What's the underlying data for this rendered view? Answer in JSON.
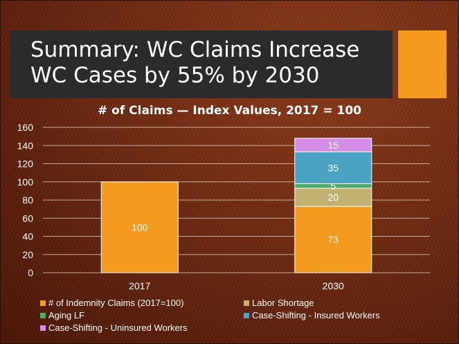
{
  "slide": {
    "title": "Summary: WC Claims Increase WC Cases by 55% by 2030"
  },
  "chart_data": {
    "type": "bar",
    "stacked": true,
    "title": "# of Claims — Index Values, 2017 = 100",
    "categories": [
      "2017",
      "2030"
    ],
    "ylim": [
      0,
      160
    ],
    "yticks": [
      0,
      20,
      40,
      60,
      80,
      100,
      120,
      140,
      160
    ],
    "grid": true,
    "legend_position": "bottom",
    "series": [
      {
        "name": "# of Indemnity Claims (2017=100)",
        "values": [
          100,
          73
        ],
        "color": "#f39a1f",
        "labels": [
          "100",
          "73"
        ]
      },
      {
        "name": "Labor Shortage",
        "values": [
          0,
          20
        ],
        "color": "#c2b272",
        "labels": [
          "",
          "20"
        ]
      },
      {
        "name": "Aging LF",
        "values": [
          0,
          5
        ],
        "color": "#4caa6a",
        "labels": [
          "",
          "5"
        ]
      },
      {
        "name": "Case-Shifting - Insured Workers",
        "values": [
          0,
          35
        ],
        "color": "#4aa3c2",
        "labels": [
          "",
          "35"
        ]
      },
      {
        "name": "Case-Shifting - Uninsured Workers",
        "values": [
          0,
          15
        ],
        "color": "#d58ee8",
        "labels": [
          "",
          "15"
        ]
      }
    ]
  }
}
